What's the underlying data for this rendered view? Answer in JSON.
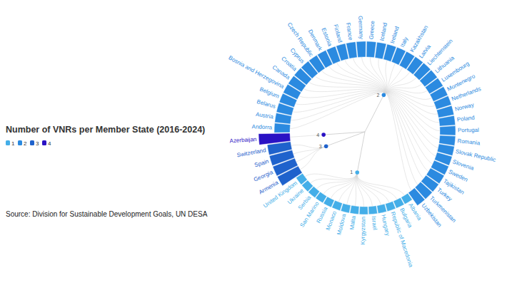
{
  "chart_data": {
    "type": "radial_bar",
    "title": "Number of VNRs per Member State (2016-2024)",
    "source": "Source: Division for Sustainable Development Goals, UN DESA",
    "categories": [
      "Andorra",
      "Austria",
      "Belarus",
      "Belgium",
      "Bosnia and Herzegovina",
      "Canada",
      "Croatia",
      "Cyprus",
      "Czech Republic",
      "Denmark",
      "Estonia",
      "Finland",
      "France",
      "Germany",
      "Greece",
      "Iceland",
      "Ireland",
      "Italy",
      "Kazakhstan",
      "Latvia",
      "Liechtenstein",
      "Lithuania",
      "Luxembourg",
      "Montenegro",
      "Netherlands",
      "Norway",
      "Poland",
      "Portugal",
      "Romania",
      "Slovak Republic",
      "Slovenia",
      "Sweden",
      "Tajikistan",
      "Turkey",
      "Turkmenistan",
      "Uzbekistan",
      "Albania",
      "Bulgaria",
      "Republic of Macedonia",
      "Hungary",
      "Israel",
      "Kyrgyzstan",
      "Malta",
      "Moldova",
      "Monaco",
      "Russia",
      "San Marino",
      "Serbia",
      "Ukraine",
      "United Kingdom",
      "Armenia",
      "Georgia",
      "Spain",
      "Switzerland",
      "Azerbaijan"
    ],
    "values": [
      2,
      2,
      2,
      2,
      2,
      2,
      2,
      2,
      2,
      2,
      2,
      2,
      2,
      2,
      2,
      2,
      2,
      2,
      2,
      2,
      2,
      2,
      2,
      2,
      2,
      2,
      2,
      2,
      2,
      2,
      2,
      2,
      2,
      2,
      2,
      2,
      1,
      1,
      1,
      1,
      1,
      1,
      1,
      1,
      1,
      1,
      1,
      1,
      1,
      1,
      3,
      3,
      3,
      3,
      4
    ],
    "ylim": [
      0,
      4
    ],
    "tick_labels": false,
    "color_scale": {
      "ticks": [
        1,
        2,
        3,
        4
      ],
      "colors": [
        "#44aee8",
        "#2b8ae0",
        "#1f62cc",
        "#2a12c4"
      ]
    }
  }
}
